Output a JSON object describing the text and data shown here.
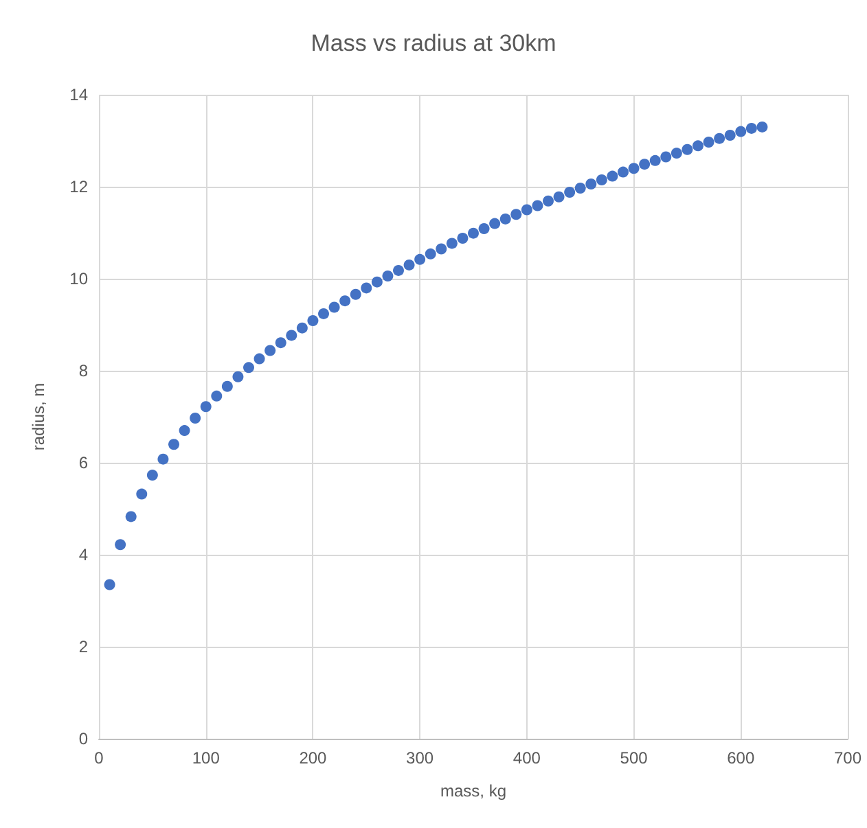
{
  "chart_data": {
    "type": "scatter",
    "title": "Mass vs radius at 30km",
    "xlabel": "mass, kg",
    "ylabel": "radius, m",
    "x": [
      10,
      20,
      30,
      40,
      50,
      60,
      70,
      80,
      90,
      100,
      110,
      120,
      130,
      140,
      150,
      160,
      170,
      180,
      190,
      200,
      210,
      220,
      230,
      240,
      250,
      260,
      270,
      280,
      290,
      300,
      310,
      320,
      330,
      340,
      350,
      360,
      370,
      380,
      390,
      400,
      410,
      420,
      430,
      440,
      450,
      460,
      470,
      480,
      490,
      500,
      510,
      520,
      530,
      540,
      550,
      560,
      570,
      580,
      590,
      600,
      610,
      620
    ],
    "series": [
      {
        "color": "#4472c4",
        "values": [
          3.35,
          4.22,
          4.83,
          5.32,
          5.73,
          6.08,
          6.4,
          6.7,
          6.97,
          7.22,
          7.45,
          7.66,
          7.87,
          8.07,
          8.26,
          8.44,
          8.61,
          8.77,
          8.93,
          9.09,
          9.24,
          9.38,
          9.52,
          9.66,
          9.8,
          9.93,
          10.06,
          10.18,
          10.3,
          10.42,
          10.54,
          10.65,
          10.77,
          10.88,
          10.99,
          11.09,
          11.2,
          11.3,
          11.4,
          11.5,
          11.59,
          11.69,
          11.78,
          11.88,
          11.97,
          12.06,
          12.15,
          12.23,
          12.32,
          12.4,
          12.49,
          12.57,
          12.65,
          12.73,
          12.81,
          12.89,
          12.97,
          13.05,
          13.12,
          13.2,
          13.27,
          13.3
        ]
      }
    ],
    "xlim": [
      0,
      700
    ],
    "xticks": [
      0,
      100,
      200,
      300,
      400,
      500,
      600,
      700
    ],
    "ylim": [
      0,
      14
    ],
    "yticks": [
      0,
      2,
      4,
      6,
      8,
      10,
      12,
      14
    ],
    "grid": true,
    "marker": "circle"
  }
}
